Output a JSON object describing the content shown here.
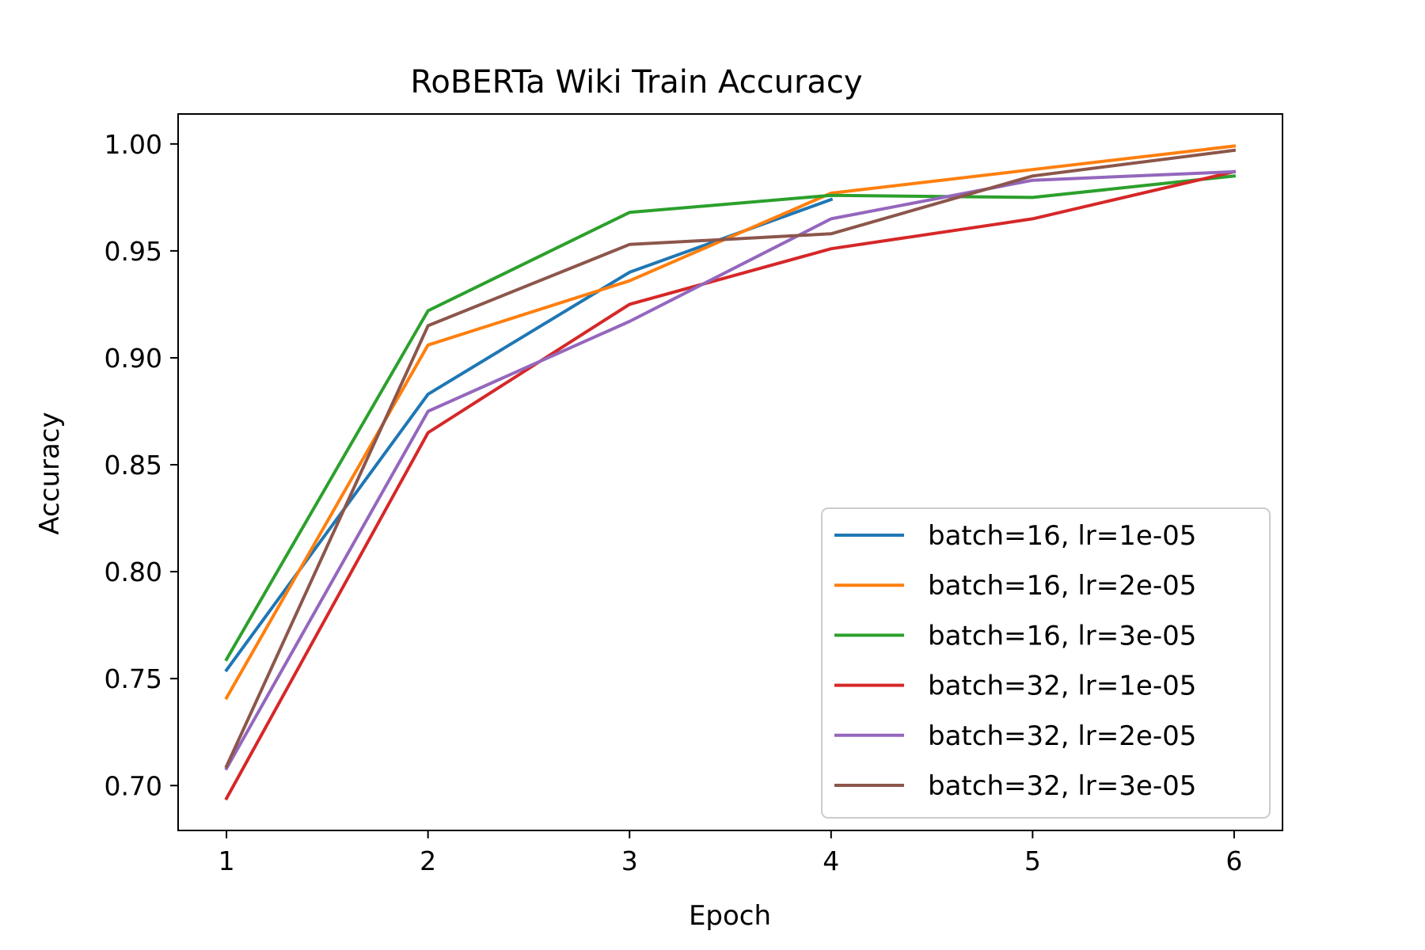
{
  "chart_data": {
    "type": "line",
    "title": "RoBERTa Wiki Train Accuracy",
    "xlabel": "Epoch",
    "ylabel": "Accuracy",
    "xlim": [
      0.76,
      6.24
    ],
    "ylim": [
      0.679,
      1.014
    ],
    "xticks": [
      1,
      2,
      3,
      4,
      5,
      6
    ],
    "yticks": [
      0.7,
      0.75,
      0.8,
      0.85,
      0.9,
      0.95,
      1.0
    ],
    "legend_position": "lower-right",
    "grid": false,
    "series": [
      {
        "name": "batch=16, lr=1e-05",
        "color": "#1f77b4",
        "x": [
          1,
          2,
          3,
          4
        ],
        "y": [
          0.754,
          0.883,
          0.94,
          0.974
        ]
      },
      {
        "name": "batch=16, lr=2e-05",
        "color": "#ff7f0e",
        "x": [
          1,
          2,
          3,
          4,
          5,
          6
        ],
        "y": [
          0.741,
          0.906,
          0.936,
          0.977,
          0.988,
          0.999
        ]
      },
      {
        "name": "batch=16, lr=3e-05",
        "color": "#2ca02c",
        "x": [
          1,
          2,
          3,
          4,
          5,
          6
        ],
        "y": [
          0.759,
          0.922,
          0.968,
          0.976,
          0.975,
          0.985
        ]
      },
      {
        "name": "batch=32, lr=1e-05",
        "color": "#d62728",
        "x": [
          1,
          2,
          3,
          4,
          5,
          6
        ],
        "y": [
          0.694,
          0.865,
          0.925,
          0.951,
          0.965,
          0.987
        ]
      },
      {
        "name": "batch=32, lr=2e-05",
        "color": "#9467bd",
        "x": [
          1,
          2,
          3,
          4,
          5,
          6
        ],
        "y": [
          0.708,
          0.875,
          0.917,
          0.965,
          0.983,
          0.987
        ]
      },
      {
        "name": "batch=32, lr=3e-05",
        "color": "#8c564b",
        "x": [
          1,
          2,
          3,
          4,
          5,
          6
        ],
        "y": [
          0.709,
          0.915,
          0.953,
          0.958,
          0.985,
          0.997
        ]
      }
    ]
  }
}
